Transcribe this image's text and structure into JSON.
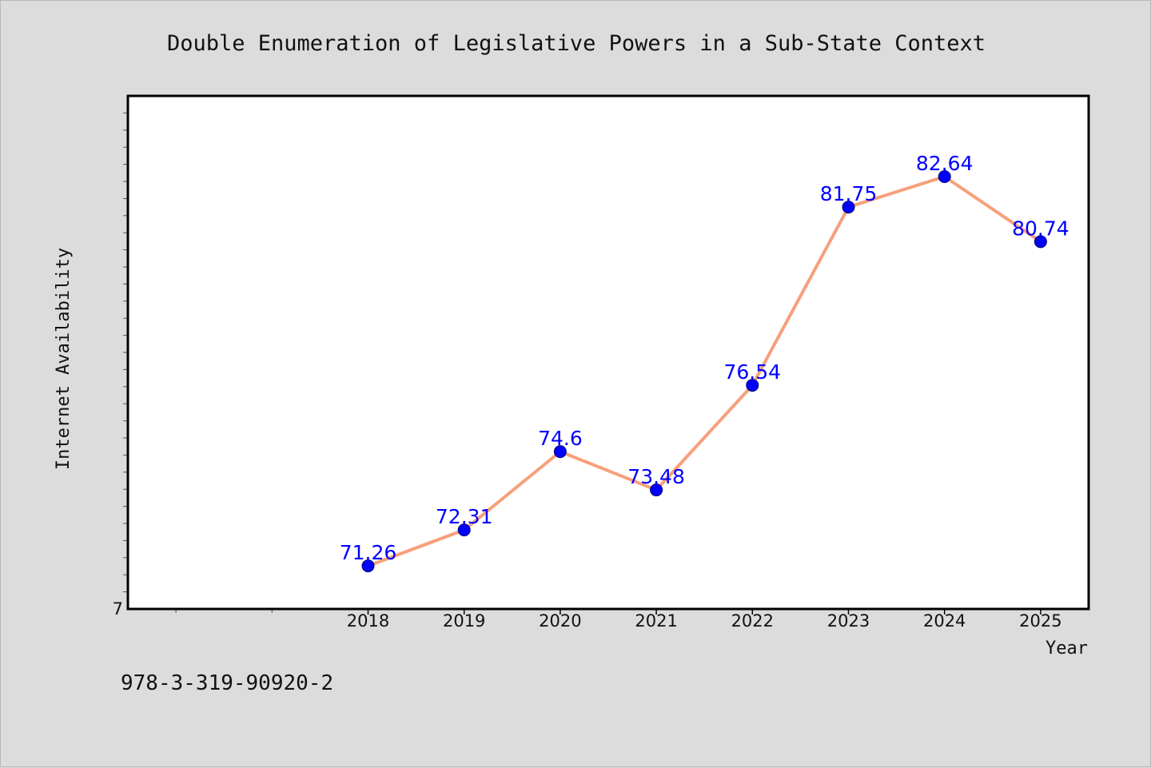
{
  "footnote": "978-3-319-90920-2",
  "chart_data": {
    "type": "line",
    "title": "Double Enumeration of Legislative Powers in a Sub-State Context",
    "xlabel": "Year",
    "ylabel": "Internet Availability",
    "x": [
      "2018",
      "2019",
      "2020",
      "2021",
      "2022",
      "2023",
      "2024",
      "2025"
    ],
    "x_range": [
      2015.5,
      2025.5
    ],
    "ylim": [
      70,
      85
    ],
    "y_ticks_labeled": [
      "7"
    ],
    "series": [
      {
        "values": [
          71.26,
          72.31,
          74.6,
          73.48,
          76.54,
          81.75,
          82.64,
          80.74
        ]
      }
    ],
    "data_labels": [
      "71.26",
      "72.31",
      "74.6",
      "73.48",
      "76.54",
      "81.75",
      "82.64",
      "80.74"
    ],
    "grid": false,
    "legend": "none",
    "colors": {
      "line": "#f7a07c",
      "marker": "#0000ff",
      "data_label": "#0000ff",
      "plot_background": "#ffffff",
      "figure_background": "#dcdcdc"
    }
  }
}
